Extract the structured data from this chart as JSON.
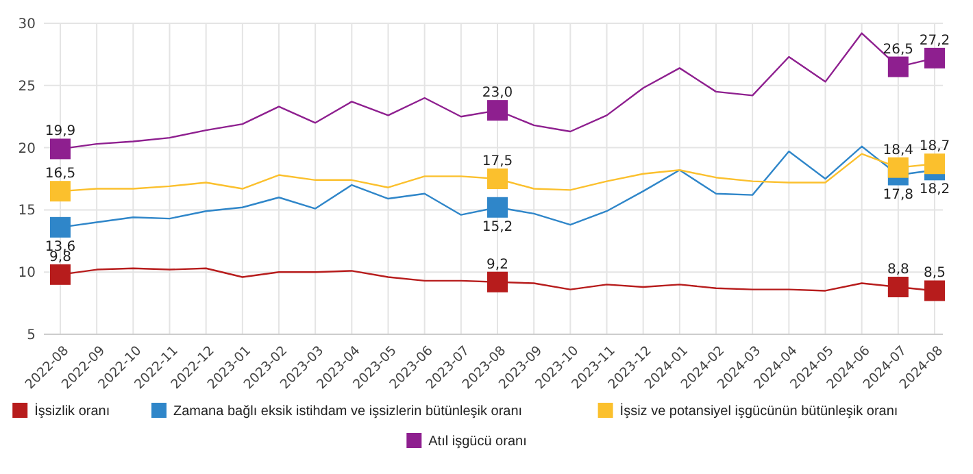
{
  "chart_data": {
    "type": "line",
    "categories": [
      "2022-08",
      "2022-09",
      "2022-10",
      "2022-11",
      "2022-12",
      "2023-01",
      "2023-02",
      "2023-03",
      "2023-04",
      "2023-05",
      "2023-06",
      "2023-07",
      "2023-08",
      "2023-09",
      "2023-10",
      "2023-11",
      "2023-12",
      "2024-01",
      "2024-02",
      "2024-03",
      "2024-04",
      "2024-05",
      "2024-06",
      "2024-07",
      "2024-08"
    ],
    "ylim": [
      5,
      30
    ],
    "yticks": [
      5,
      10,
      15,
      20,
      25,
      30
    ],
    "grid": true,
    "legend": "bottom",
    "series": [
      {
        "name": "İşsizlik oranı",
        "color": "#b71c1c",
        "values": [
          9.8,
          10.2,
          10.3,
          10.2,
          10.3,
          9.6,
          10.0,
          10.0,
          10.1,
          9.6,
          9.3,
          9.3,
          9.2,
          9.1,
          8.6,
          9.0,
          8.8,
          9.0,
          8.7,
          8.6,
          8.6,
          8.5,
          9.1,
          8.8,
          8.5
        ],
        "value_labels": [
          "9,8",
          null,
          null,
          null,
          null,
          null,
          null,
          null,
          null,
          null,
          null,
          null,
          "9,2",
          null,
          null,
          null,
          null,
          null,
          null,
          null,
          null,
          null,
          null,
          "8,8",
          "8,5"
        ]
      },
      {
        "name": "Zamana bağlı eksik istihdam ve işsizlerin bütünleşik oranı",
        "color": "#2f86c9",
        "values": [
          13.6,
          14.0,
          14.4,
          14.3,
          14.9,
          15.2,
          16.0,
          15.1,
          17.0,
          15.9,
          16.3,
          14.6,
          15.2,
          14.7,
          13.8,
          14.9,
          16.5,
          18.2,
          16.3,
          16.2,
          19.7,
          17.5,
          20.1,
          17.8,
          18.2
        ],
        "value_labels": [
          "13,6",
          null,
          null,
          null,
          null,
          null,
          null,
          null,
          null,
          null,
          null,
          null,
          "15,2",
          null,
          null,
          null,
          null,
          null,
          null,
          null,
          null,
          null,
          null,
          "17,8",
          "18,2"
        ]
      },
      {
        "name": "İşsiz ve potansiyel işgücünün bütünleşik oranı",
        "color": "#fbc02d",
        "values": [
          16.5,
          16.7,
          16.7,
          16.9,
          17.2,
          16.7,
          17.8,
          17.4,
          17.4,
          16.8,
          17.7,
          17.7,
          17.5,
          16.7,
          16.6,
          17.3,
          17.9,
          18.2,
          17.6,
          17.3,
          17.2,
          17.2,
          19.5,
          18.4,
          18.7
        ],
        "value_labels": [
          "16,5",
          null,
          null,
          null,
          null,
          null,
          null,
          null,
          null,
          null,
          null,
          null,
          "17,5",
          null,
          null,
          null,
          null,
          null,
          null,
          null,
          null,
          null,
          null,
          "18,4",
          "18,7"
        ]
      },
      {
        "name": "Atıl işgücü oranı",
        "color": "#8e1f8f",
        "values": [
          19.9,
          20.3,
          20.5,
          20.8,
          21.4,
          21.9,
          23.3,
          22.0,
          23.7,
          22.6,
          24.0,
          22.5,
          23.0,
          21.8,
          21.3,
          22.6,
          24.8,
          26.4,
          24.5,
          24.2,
          27.3,
          25.3,
          29.2,
          26.5,
          27.2
        ],
        "value_labels": [
          "19,9",
          null,
          null,
          null,
          null,
          null,
          null,
          null,
          null,
          null,
          null,
          null,
          "23,0",
          null,
          null,
          null,
          null,
          null,
          null,
          null,
          null,
          null,
          null,
          "26,5",
          "27,2"
        ]
      }
    ]
  }
}
